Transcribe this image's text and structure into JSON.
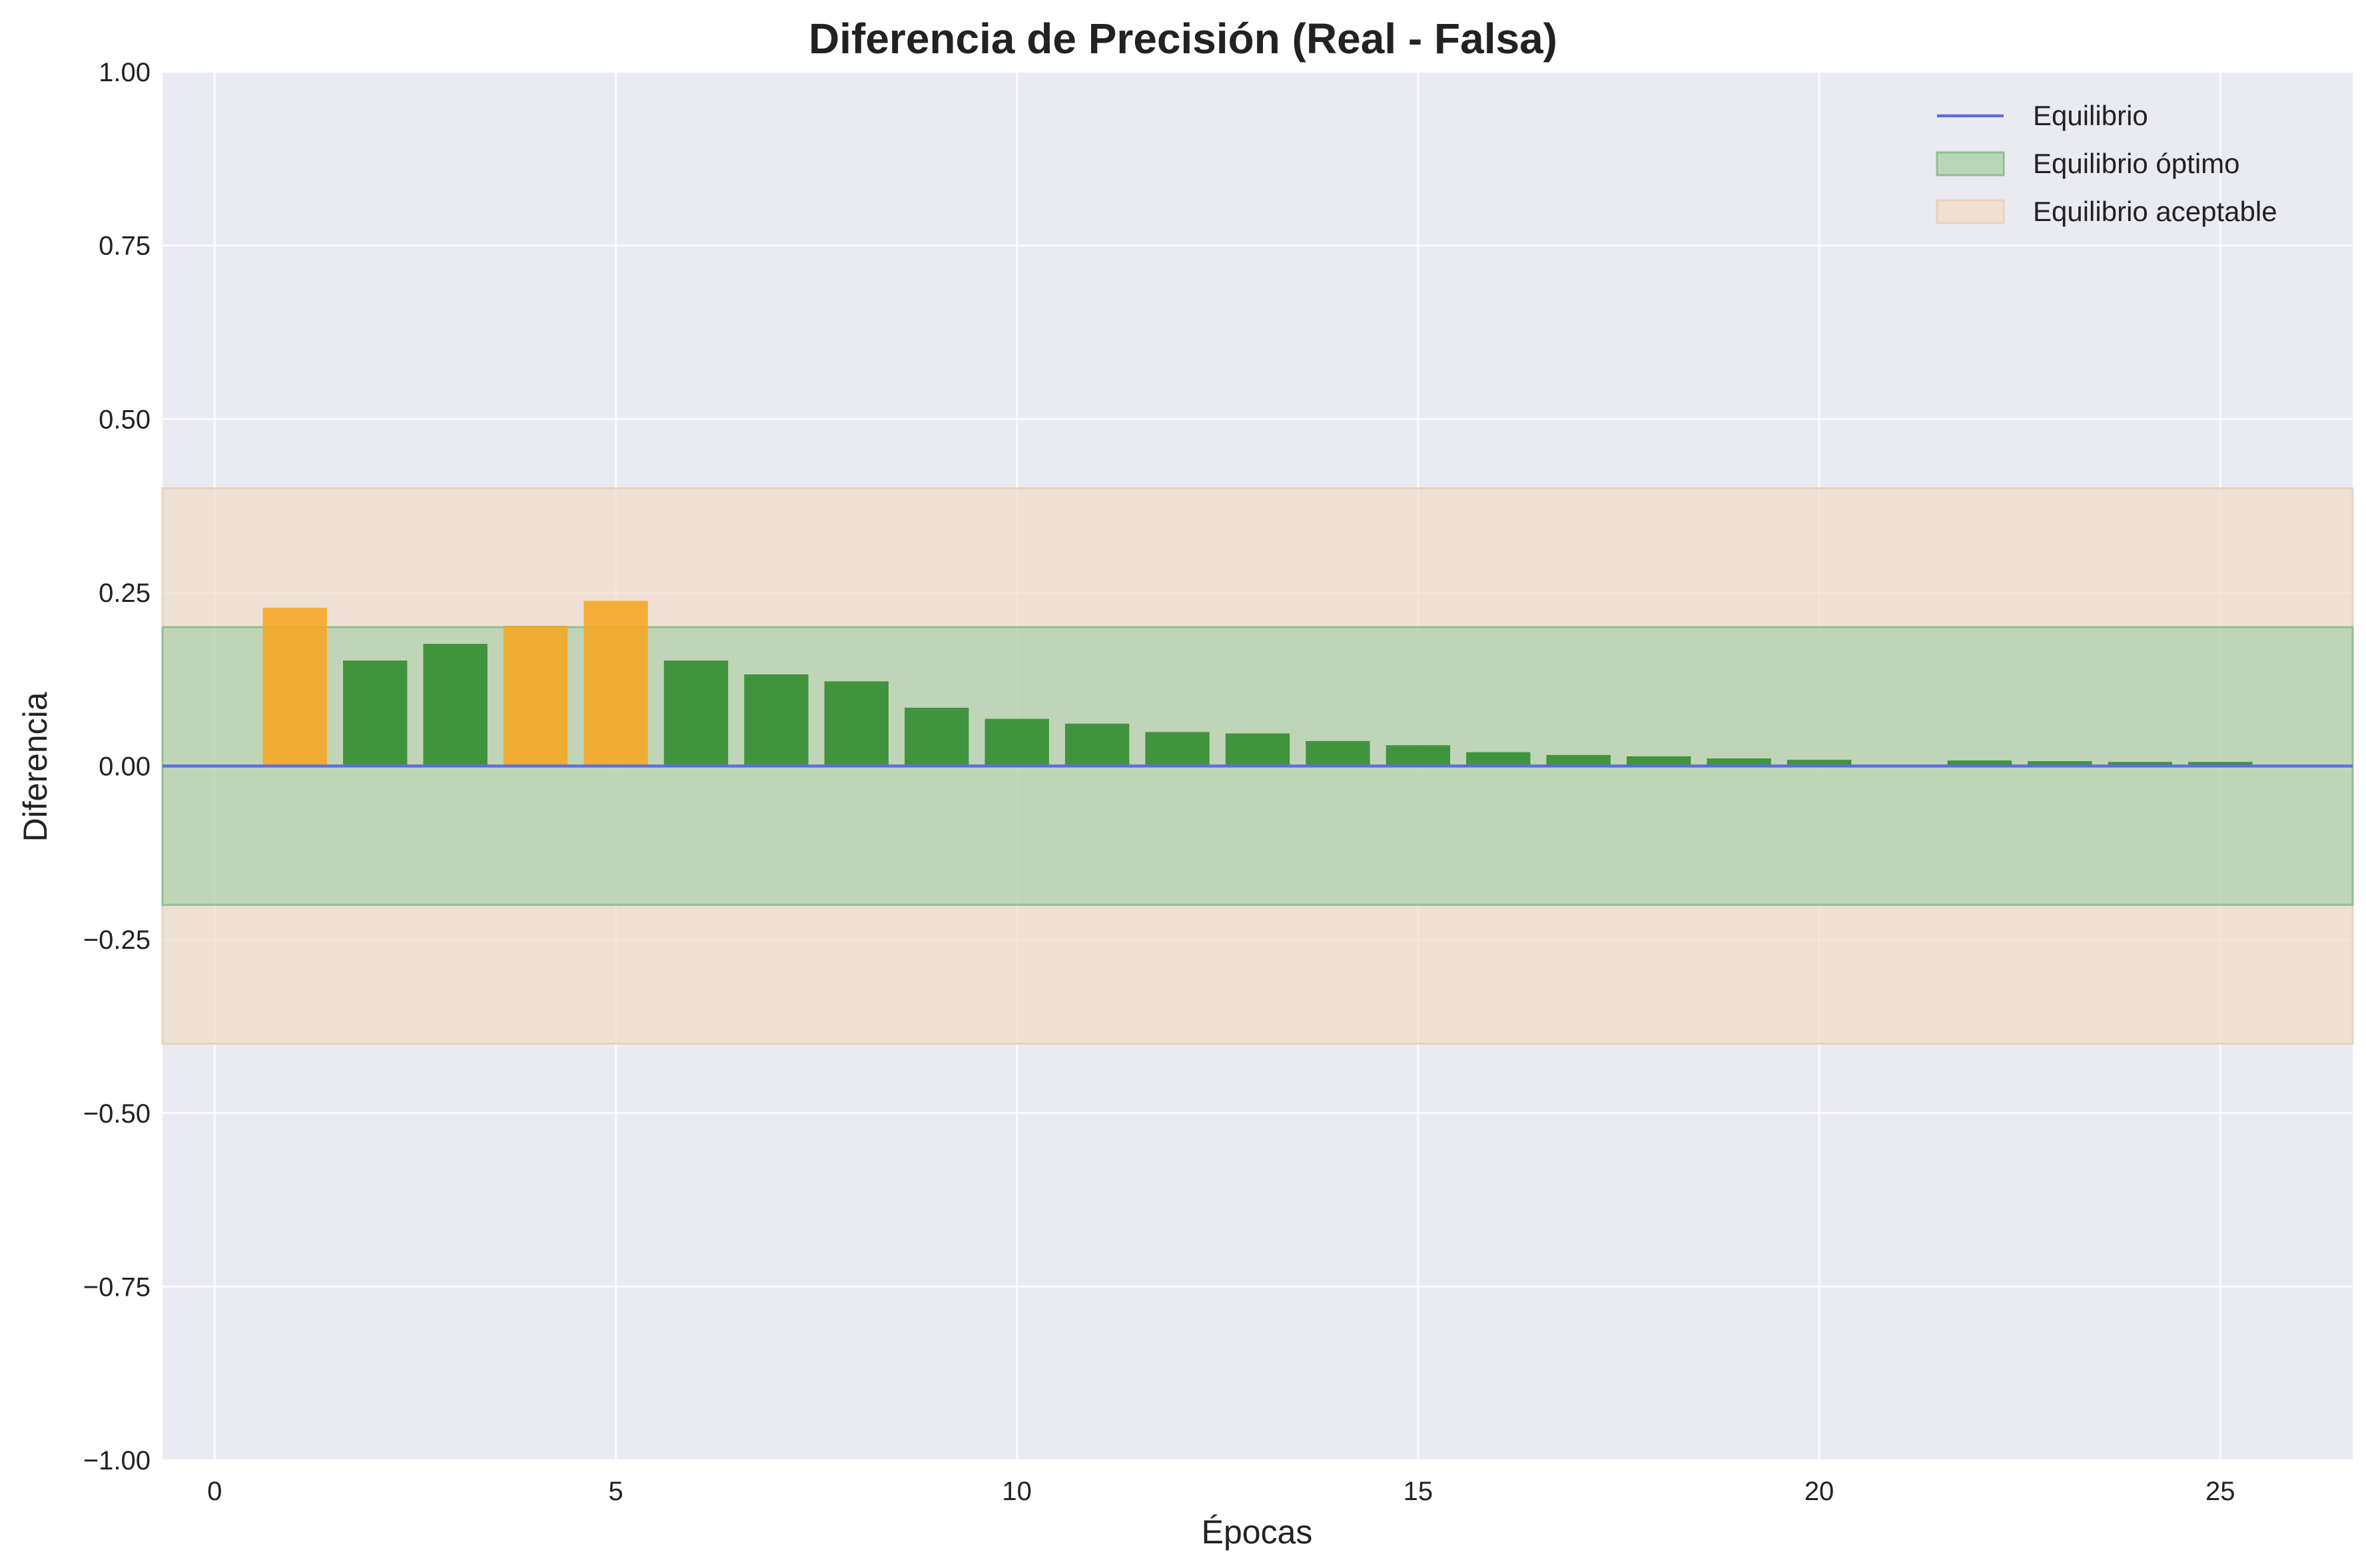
{
  "chart_data": {
    "type": "bar",
    "title": "Diferencia de Precisión (Real - Falsa)",
    "xlabel": "Épocas",
    "ylabel": "Diferencia",
    "xlim": [
      -0.65,
      26.65
    ],
    "ylim": [
      -1.0,
      1.0
    ],
    "x_ticks": [
      0,
      5,
      10,
      15,
      20,
      25
    ],
    "y_ticks": [
      -1.0,
      -0.75,
      -0.5,
      -0.25,
      0.0,
      0.25,
      0.5,
      0.75,
      1.0
    ],
    "x_tick_labels": [
      "0",
      "5",
      "10",
      "15",
      "20",
      "25"
    ],
    "y_tick_labels": [
      "−1.00",
      "−0.75",
      "−0.50",
      "−0.25",
      "0.00",
      "0.25",
      "0.50",
      "0.75",
      "1.00"
    ],
    "grid": true,
    "legend_position": "upper right",
    "x": [
      1,
      2,
      3,
      4,
      5,
      6,
      7,
      8,
      9,
      10,
      11,
      12,
      13,
      14,
      15,
      16,
      17,
      18,
      19,
      20,
      21,
      22,
      23,
      24,
      25
    ],
    "values": [
      0.228,
      0.152,
      0.176,
      0.202,
      0.238,
      0.152,
      0.132,
      0.122,
      0.084,
      0.068,
      0.061,
      0.049,
      0.047,
      0.036,
      0.03,
      0.02,
      0.016,
      0.014,
      0.011,
      0.009,
      0.002,
      0.008,
      0.007,
      0.006,
      0.006
    ],
    "bar_colors": [
      "#f5a623",
      "#2e8b2e",
      "#2e8b2e",
      "#f5a623",
      "#f5a623",
      "#2e8b2e",
      "#2e8b2e",
      "#2e8b2e",
      "#2e8b2e",
      "#2e8b2e",
      "#2e8b2e",
      "#2e8b2e",
      "#2e8b2e",
      "#2e8b2e",
      "#2e8b2e",
      "#2e8b2e",
      "#2e8b2e",
      "#2e8b2e",
      "#2e8b2e",
      "#2e8b2e",
      "#2e8b2e",
      "#2e8b2e",
      "#2e8b2e",
      "#2e8b2e",
      "#2e8b2e"
    ],
    "reference_line": {
      "name": "Equilibrio",
      "y": 0.0,
      "color": "#5b6ee1"
    },
    "bands": [
      {
        "name": "Equilibrio aceptable",
        "y0": -0.4,
        "y1": 0.4,
        "color": "#f0dcc8"
      },
      {
        "name": "Equilibrio óptimo",
        "y0": -0.2,
        "y1": 0.2,
        "color": "#a8cfa8"
      }
    ],
    "legend": [
      {
        "label": "Equilibrio",
        "kind": "line",
        "color": "#5b6ee1"
      },
      {
        "label": "Equilibrio óptimo",
        "kind": "patch",
        "color": "#a8cfa8"
      },
      {
        "label": "Equilibrio aceptable",
        "kind": "patch",
        "color": "#f0dcc8"
      }
    ],
    "plot_background": "#eaeaf2"
  }
}
